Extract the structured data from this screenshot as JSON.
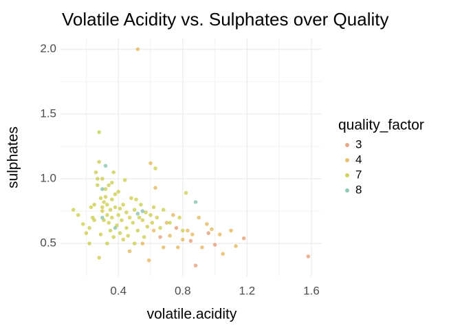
{
  "chart_data": {
    "type": "scatter",
    "title": "Volatile Acidity vs. Sulphates over Quality",
    "x_label": "volatile.acidity",
    "y_label": "sulphates",
    "legend_title": "quality_factor",
    "legend": "right",
    "xlim": [
      0.04,
      1.66
    ],
    "ylim": [
      0.246,
      2.083
    ],
    "xticks": [
      0.4,
      0.8,
      1.2,
      1.6
    ],
    "yticks": [
      0.5,
      {
        "value": 1.0,
        "label": "1.0"
      },
      1.5,
      {
        "value": 2.0,
        "label": "2.0"
      }
    ],
    "xminor": [
      0.2,
      0.6,
      1.0,
      1.4
    ],
    "yminor": [
      0.75,
      1.25,
      1.75
    ],
    "grid": true,
    "series": [
      {
        "name": "3",
        "color": "#e08b5a",
        "x": [
          1.58,
          1.18,
          1.0,
          0.88,
          0.76,
          0.66,
          0.85,
          0.96
        ],
        "values": [
          0.4,
          0.54,
          0.49,
          0.33,
          0.62,
          0.55,
          0.52,
          0.58
        ]
      },
      {
        "name": "4",
        "color": "#e0a93a",
        "x": [
          0.52,
          0.6,
          0.63,
          0.9,
          0.95,
          1.03,
          1.1,
          0.77,
          0.72,
          0.68,
          0.8,
          0.92,
          0.59,
          0.55,
          0.62,
          0.47,
          0.86,
          1.05,
          1.13,
          0.74,
          0.98,
          0.83,
          0.7
        ],
        "values": [
          2.0,
          1.12,
          0.93,
          0.7,
          0.65,
          0.57,
          0.6,
          0.47,
          0.56,
          0.47,
          0.53,
          0.47,
          0.37,
          0.5,
          0.6,
          0.44,
          0.57,
          0.42,
          0.48,
          0.72,
          0.61,
          0.6,
          0.66
        ]
      },
      {
        "name": "7",
        "color": "#c4c42a",
        "x": [
          0.12,
          0.2,
          0.22,
          0.22,
          0.24,
          0.25,
          0.26,
          0.27,
          0.28,
          0.28,
          0.28,
          0.29,
          0.3,
          0.3,
          0.31,
          0.31,
          0.32,
          0.32,
          0.33,
          0.33,
          0.34,
          0.34,
          0.35,
          0.35,
          0.36,
          0.36,
          0.37,
          0.38,
          0.38,
          0.39,
          0.4,
          0.4,
          0.41,
          0.41,
          0.42,
          0.43,
          0.44,
          0.45,
          0.45,
          0.46,
          0.47,
          0.48,
          0.49,
          0.5,
          0.5,
          0.51,
          0.52,
          0.53,
          0.54,
          0.55,
          0.56,
          0.57,
          0.58,
          0.6,
          0.61,
          0.62,
          0.63,
          0.64,
          0.66,
          0.68,
          0.72,
          0.78,
          0.8,
          0.82,
          0.25,
          0.27,
          0.29,
          0.33,
          0.37,
          0.43,
          0.18,
          0.15,
          0.23,
          0.3,
          0.36
        ],
        "values": [
          0.76,
          0.58,
          0.62,
          0.5,
          0.7,
          0.8,
          1.05,
          1.0,
          1.13,
          1.36,
          0.39,
          0.85,
          0.75,
          0.78,
          0.82,
          0.68,
          0.92,
          0.86,
          0.8,
          0.72,
          0.95,
          0.66,
          0.76,
          0.6,
          0.84,
          0.7,
          0.55,
          0.78,
          0.88,
          0.64,
          0.72,
          0.9,
          0.77,
          0.58,
          0.68,
          0.8,
          0.99,
          0.74,
          0.62,
          0.56,
          0.7,
          0.85,
          0.66,
          0.76,
          0.5,
          0.84,
          0.6,
          0.7,
          0.8,
          0.68,
          0.55,
          0.74,
          0.63,
          0.72,
          0.66,
          0.78,
          1.08,
          0.7,
          0.62,
          0.76,
          0.66,
          0.7,
          0.6,
          0.89,
          0.68,
          0.95,
          0.57,
          0.5,
          1.05,
          0.53,
          0.65,
          0.72,
          0.78,
          1.0,
          0.97
        ]
      },
      {
        "name": "8",
        "color": "#6fb59a",
        "x": [
          0.32,
          0.88,
          0.3,
          0.52,
          0.3,
          0.38,
          0.55
        ],
        "values": [
          1.1,
          0.82,
          0.92,
          0.73,
          0.7,
          0.62,
          0.75
        ]
      }
    ]
  }
}
